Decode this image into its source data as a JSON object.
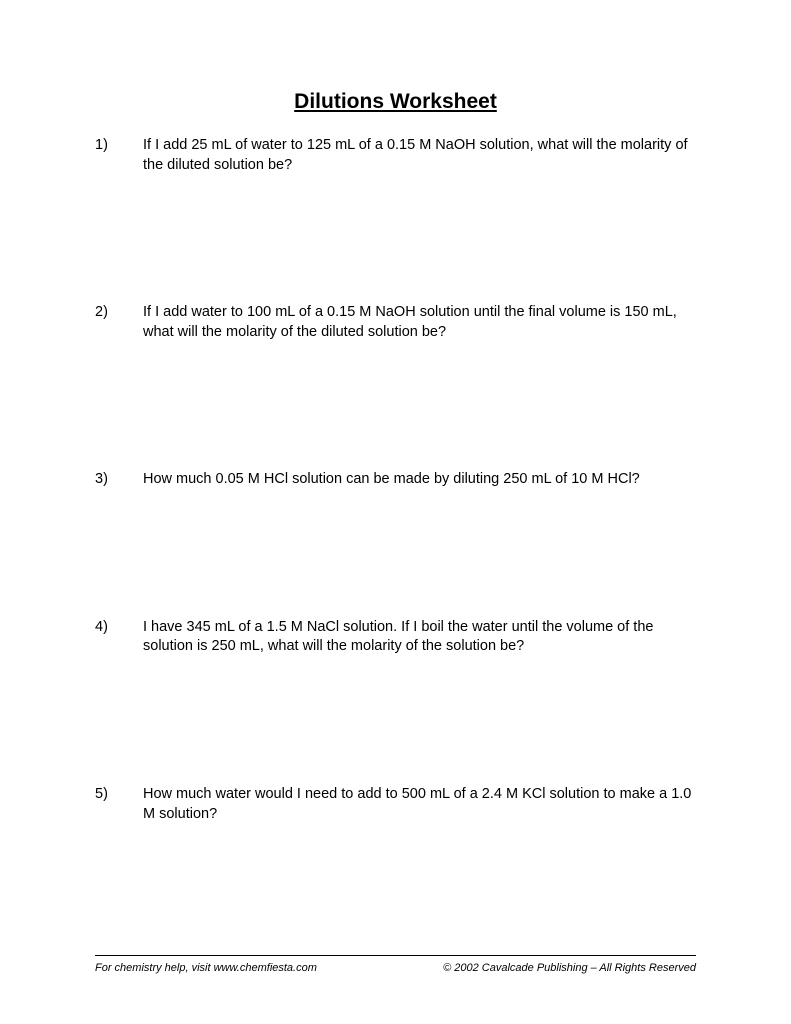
{
  "title": "Dilutions Worksheet",
  "questions": [
    {
      "num": "1)",
      "text": "If I add 25 mL of water to 125 mL of a 0.15 M NaOH solution, what will the molarity of the diluted solution be?"
    },
    {
      "num": "2)",
      "text": "If I add water to 100 mL of a 0.15 M NaOH solution until the final volume is 150 mL, what will the molarity of the diluted solution be?"
    },
    {
      "num": "3)",
      "text": "How much 0.05 M HCl solution can be made by diluting 250 mL of 10 M HCl?"
    },
    {
      "num": "4)",
      "text": "I have 345 mL of a 1.5 M NaCl solution.  If I boil the water until the volume of the solution is 250 mL, what will the molarity of the solution be?"
    },
    {
      "num": "5)",
      "text": "How much water would I need to add to 500 mL of a 2.4 M KCl solution to make a 1.0 M solution?"
    }
  ],
  "footer": {
    "left": "For chemistry help, visit www.chemfiesta.com",
    "right": "© 2002 Cavalcade Publishing – All Rights Reserved"
  }
}
